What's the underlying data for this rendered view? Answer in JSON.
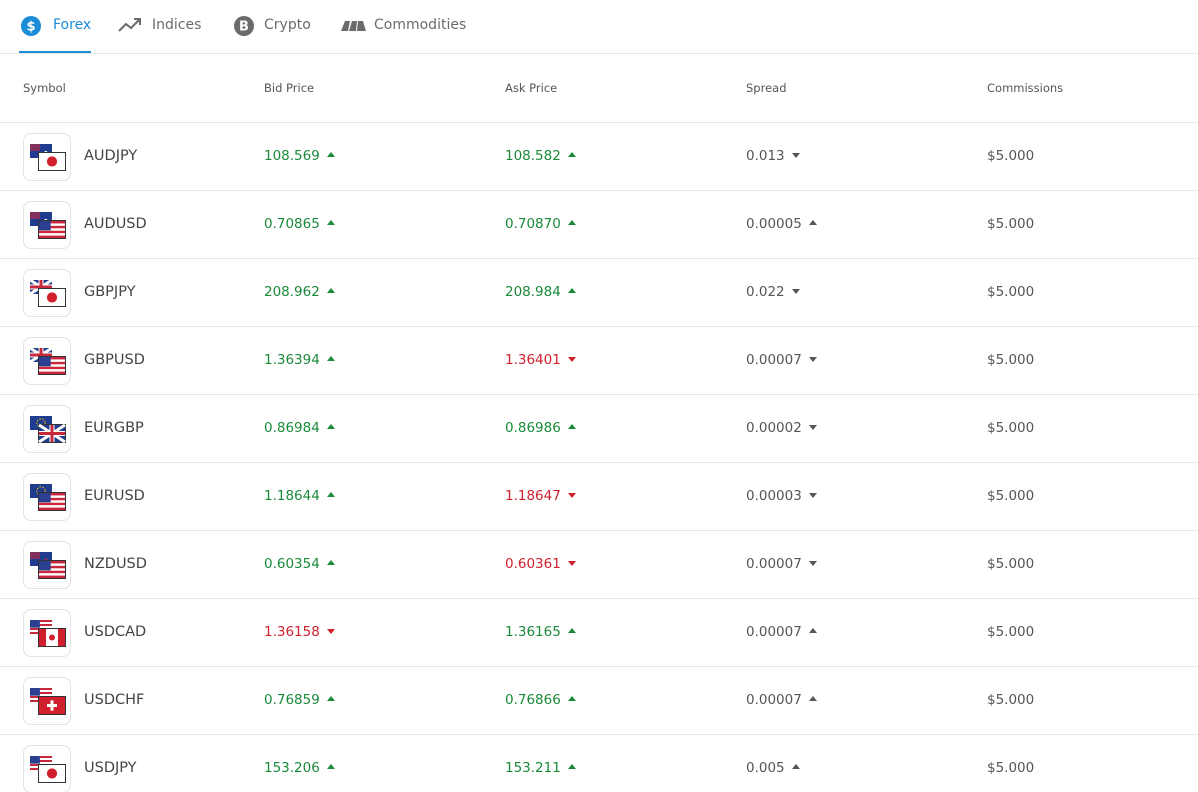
{
  "tabs": [
    {
      "label": "Forex",
      "active": true
    },
    {
      "label": "Indices"
    },
    {
      "label": "Crypto"
    },
    {
      "label": "Commodities"
    }
  ],
  "table": {
    "headers": [
      "Symbol",
      "Bid Price",
      "Ask Price",
      "Spread",
      "Commissions"
    ],
    "rows": [
      {
        "symbol": "AUDJPY",
        "bid": "108.569",
        "bid_dir": "up",
        "ask": "108.582",
        "ask_dir": "up",
        "spread": "0.013",
        "spread_dir": "down",
        "commission": "$5.000"
      },
      {
        "symbol": "AUDUSD",
        "bid": "0.70865",
        "bid_dir": "up",
        "ask": "0.70870",
        "ask_dir": "up",
        "spread": "0.00005",
        "spread_dir": "up",
        "commission": "$5.000"
      },
      {
        "symbol": "GBPJPY",
        "bid": "208.962",
        "bid_dir": "up",
        "ask": "208.984",
        "ask_dir": "up",
        "spread": "0.022",
        "spread_dir": "down",
        "commission": "$5.000"
      },
      {
        "symbol": "GBPUSD",
        "bid": "1.36394",
        "bid_dir": "up",
        "ask": "1.36401",
        "ask_dir": "down",
        "spread": "0.00007",
        "spread_dir": "down",
        "commission": "$5.000"
      },
      {
        "symbol": "EURGBP",
        "bid": "0.86984",
        "bid_dir": "up",
        "ask": "0.86986",
        "ask_dir": "up",
        "spread": "0.00002",
        "spread_dir": "down",
        "commission": "$5.000"
      },
      {
        "symbol": "EURUSD",
        "bid": "1.18644",
        "bid_dir": "up",
        "ask": "1.18647",
        "ask_dir": "down",
        "spread": "0.00003",
        "spread_dir": "down",
        "commission": "$5.000"
      },
      {
        "symbol": "NZDUSD",
        "bid": "0.60354",
        "bid_dir": "up",
        "ask": "0.60361",
        "ask_dir": "down",
        "spread": "0.00007",
        "spread_dir": "down",
        "commission": "$5.000"
      },
      {
        "symbol": "USDCAD",
        "bid": "1.36158",
        "bid_dir": "down",
        "ask": "1.36165",
        "ask_dir": "up",
        "spread": "0.00007",
        "spread_dir": "up",
        "commission": "$5.000"
      },
      {
        "symbol": "USDCHF",
        "bid": "0.76859",
        "bid_dir": "up",
        "ask": "0.76866",
        "ask_dir": "up",
        "spread": "0.00007",
        "spread_dir": "up",
        "commission": "$5.000"
      },
      {
        "symbol": "USDJPY",
        "bid": "153.206",
        "bid_dir": "up",
        "ask": "153.211",
        "ask_dir": "up",
        "spread": "0.005",
        "spread_dir": "up",
        "commission": "$5.000"
      }
    ]
  }
}
